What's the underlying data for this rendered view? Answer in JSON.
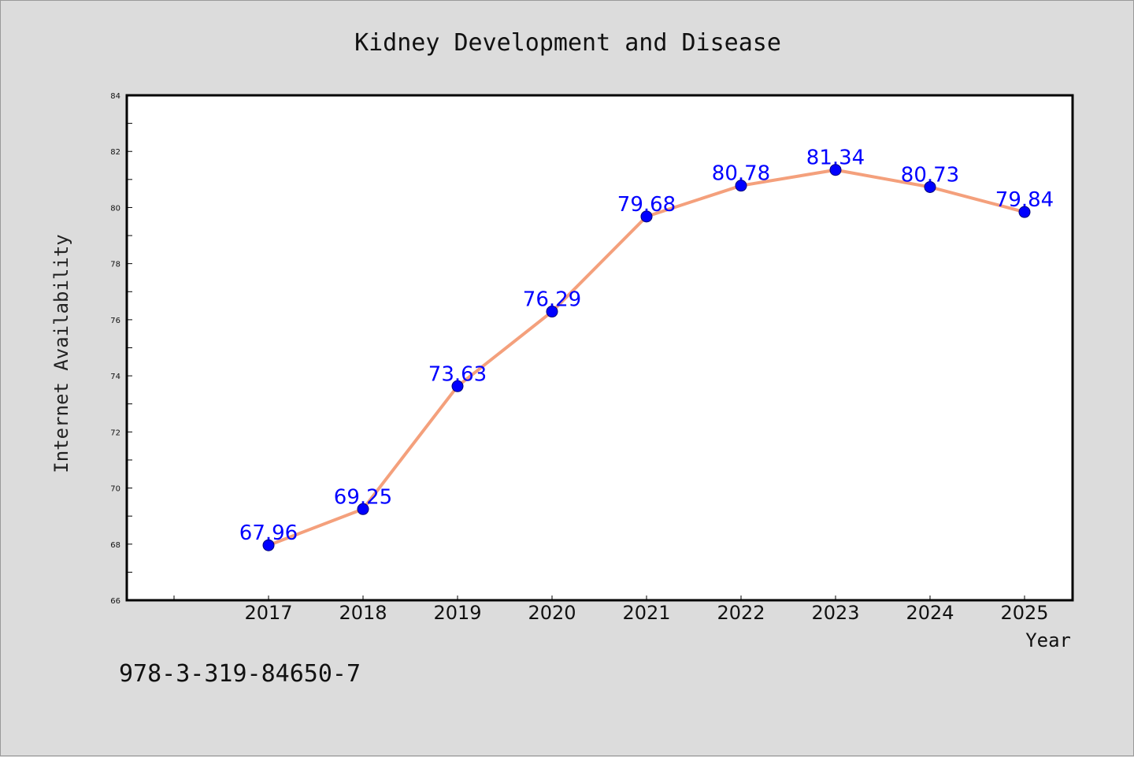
{
  "chart_data": {
    "type": "line",
    "title": "Kidney Development and Disease",
    "xlabel": "Year",
    "ylabel": "Internet Availability",
    "categories": [
      "2017",
      "2018",
      "2019",
      "2020",
      "2021",
      "2022",
      "2023",
      "2024",
      "2025"
    ],
    "values": [
      67.96,
      69.25,
      73.63,
      76.29,
      79.68,
      80.78,
      81.34,
      80.73,
      79.84
    ],
    "data_labels": [
      "67.96",
      "69.25",
      "73.63",
      "76.29",
      "79.68",
      "80.78",
      "81.34",
      "80.73",
      "79.84"
    ],
    "ylim": [
      66,
      84
    ],
    "yticks": [
      "66",
      "68",
      "70",
      "72",
      "74",
      "76",
      "78",
      "80",
      "82",
      "84"
    ],
    "grid": false,
    "legend": "none",
    "line_color": "#f4a07c",
    "marker_color": "#0000ff",
    "label_color": "#0000ff"
  },
  "footer": {
    "isbn": "978-3-319-84650-7"
  }
}
